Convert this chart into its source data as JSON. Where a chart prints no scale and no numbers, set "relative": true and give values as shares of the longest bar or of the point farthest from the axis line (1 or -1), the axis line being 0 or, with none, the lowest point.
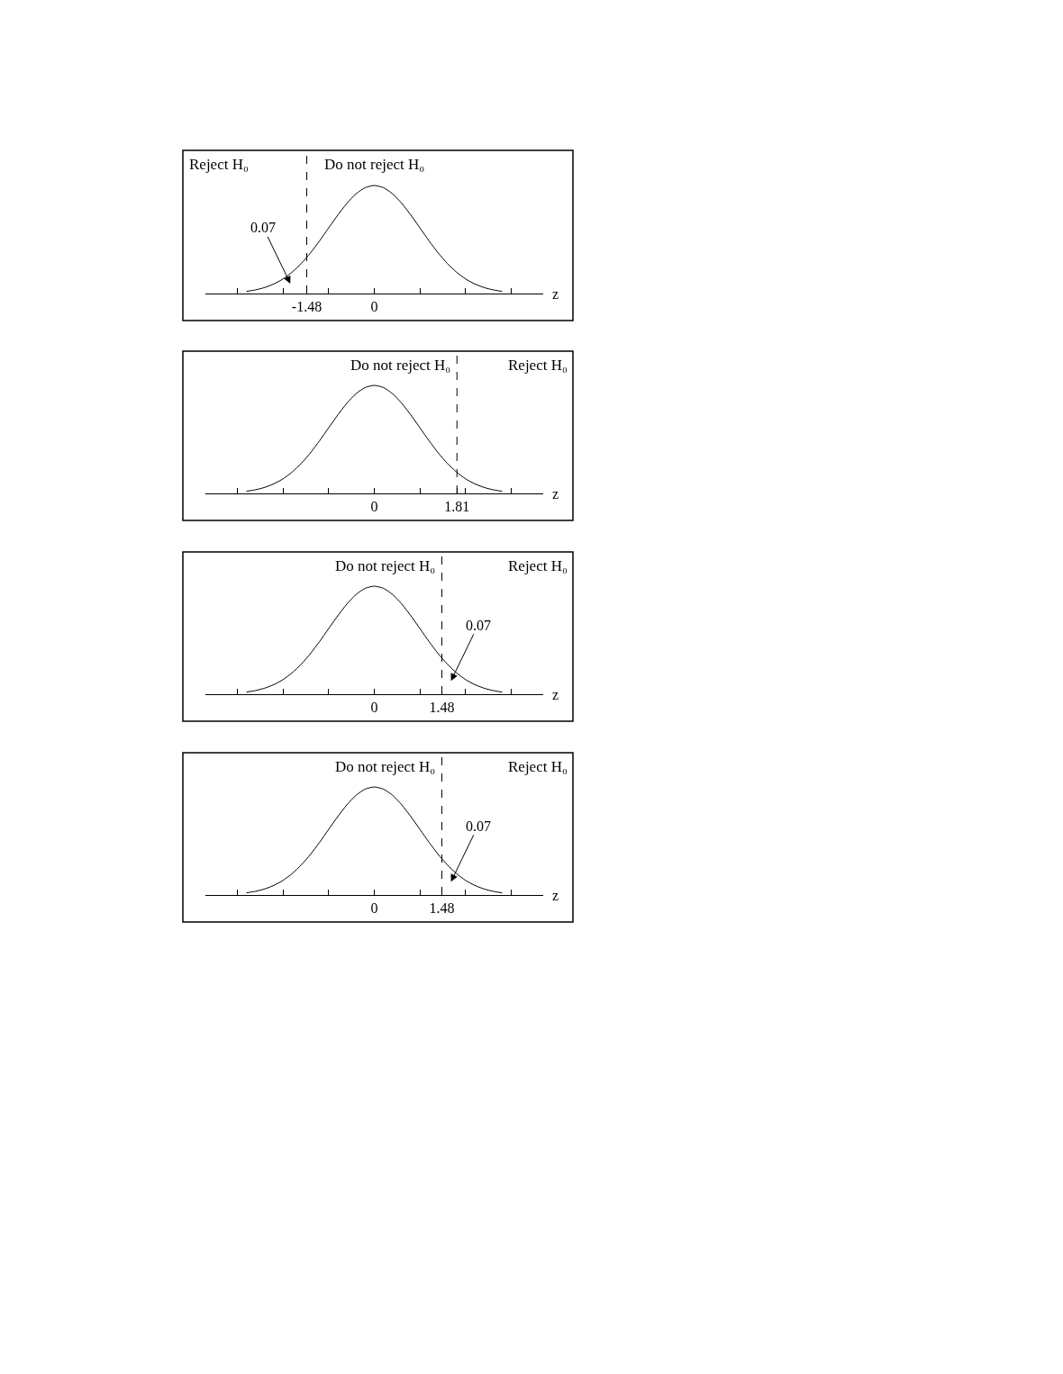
{
  "chart_data": [
    {
      "type": "line",
      "relative": true,
      "color": "#000000",
      "x": [
        -2.8,
        -2.6,
        -2.4,
        -2.2,
        -2.0,
        -1.8,
        -1.6,
        -1.4,
        -1.2,
        -1.0,
        -0.8,
        -0.6,
        -0.4,
        -0.2,
        0,
        0.2,
        0.4,
        0.6,
        0.8,
        1.0,
        1.2,
        1.4,
        1.6,
        1.8,
        2.0,
        2.2,
        2.4,
        2.6,
        2.8
      ],
      "values": [
        0.02,
        0.034,
        0.056,
        0.089,
        0.135,
        0.198,
        0.278,
        0.375,
        0.487,
        0.607,
        0.726,
        0.835,
        0.923,
        0.98,
        1,
        0.98,
        0.923,
        0.835,
        0.726,
        0.607,
        0.487,
        0.375,
        0.278,
        0.198,
        0.135,
        0.089,
        0.056,
        0.034,
        0.02
      ],
      "xlim": [
        -3.7,
        3.7
      ],
      "xticks": [
        {
          "value": -3,
          "label": null
        },
        {
          "value": -2,
          "label": null
        },
        {
          "value": -1.48,
          "label": "-1.48"
        },
        {
          "value": -1,
          "label": null
        },
        0,
        {
          "value": 1,
          "label": null
        },
        {
          "value": 2,
          "label": null
        },
        {
          "value": 3,
          "label": null
        }
      ],
      "xlabel": "z",
      "tick_labels": "x",
      "ref_lines": [
        {
          "axis": "x",
          "value": -1.48,
          "line_style": "dashed"
        }
      ],
      "annotations": [
        "Reject H₀",
        "Do not reject H₀",
        "0.07"
      ]
    },
    {
      "type": "line",
      "relative": true,
      "color": "#000000",
      "x": [
        -2.8,
        -2.6,
        -2.4,
        -2.2,
        -2.0,
        -1.8,
        -1.6,
        -1.4,
        -1.2,
        -1.0,
        -0.8,
        -0.6,
        -0.4,
        -0.2,
        0,
        0.2,
        0.4,
        0.6,
        0.8,
        1.0,
        1.2,
        1.4,
        1.6,
        1.8,
        2.0,
        2.2,
        2.4,
        2.6,
        2.8
      ],
      "values": [
        0.02,
        0.034,
        0.056,
        0.089,
        0.135,
        0.198,
        0.278,
        0.375,
        0.487,
        0.607,
        0.726,
        0.835,
        0.923,
        0.98,
        1,
        0.98,
        0.923,
        0.835,
        0.726,
        0.607,
        0.487,
        0.375,
        0.278,
        0.198,
        0.135,
        0.089,
        0.056,
        0.034,
        0.02
      ],
      "xlim": [
        -3.7,
        3.7
      ],
      "xticks": [
        {
          "value": -3,
          "label": null
        },
        {
          "value": -2,
          "label": null
        },
        {
          "value": -1,
          "label": null
        },
        0,
        {
          "value": 1,
          "label": null
        },
        {
          "value": 1.81,
          "label": "1.81"
        },
        {
          "value": 2,
          "label": null
        },
        {
          "value": 3,
          "label": null
        }
      ],
      "xlabel": "z",
      "tick_labels": "x",
      "ref_lines": [
        {
          "axis": "x",
          "value": 1.81,
          "line_style": "dashed"
        }
      ],
      "annotations": [
        "Do not reject H₀",
        "Reject H₀"
      ]
    },
    {
      "type": "line",
      "relative": true,
      "color": "#000000",
      "x": [
        -2.8,
        -2.6,
        -2.4,
        -2.2,
        -2.0,
        -1.8,
        -1.6,
        -1.4,
        -1.2,
        -1.0,
        -0.8,
        -0.6,
        -0.4,
        -0.2,
        0,
        0.2,
        0.4,
        0.6,
        0.8,
        1.0,
        1.2,
        1.4,
        1.6,
        1.8,
        2.0,
        2.2,
        2.4,
        2.6,
        2.8
      ],
      "values": [
        0.02,
        0.034,
        0.056,
        0.089,
        0.135,
        0.198,
        0.278,
        0.375,
        0.487,
        0.607,
        0.726,
        0.835,
        0.923,
        0.98,
        1,
        0.98,
        0.923,
        0.835,
        0.726,
        0.607,
        0.487,
        0.375,
        0.278,
        0.198,
        0.135,
        0.089,
        0.056,
        0.034,
        0.02
      ],
      "xlim": [
        -3.7,
        3.7
      ],
      "xticks": [
        {
          "value": -3,
          "label": null
        },
        {
          "value": -2,
          "label": null
        },
        {
          "value": -1,
          "label": null
        },
        0,
        {
          "value": 1,
          "label": null
        },
        {
          "value": 1.48,
          "label": "1.48"
        },
        {
          "value": 2,
          "label": null
        },
        {
          "value": 3,
          "label": null
        }
      ],
      "xlabel": "z",
      "tick_labels": "x",
      "ref_lines": [
        {
          "axis": "x",
          "value": 1.48,
          "line_style": "dashed"
        }
      ],
      "annotations": [
        "Do not reject H₀",
        "Reject H₀",
        "0.07"
      ]
    },
    {
      "type": "line",
      "relative": true,
      "color": "#000000",
      "x": [
        -2.8,
        -2.6,
        -2.4,
        -2.2,
        -2.0,
        -1.8,
        -1.6,
        -1.4,
        -1.2,
        -1.0,
        -0.8,
        -0.6,
        -0.4,
        -0.2,
        0,
        0.2,
        0.4,
        0.6,
        0.8,
        1.0,
        1.2,
        1.4,
        1.6,
        1.8,
        2.0,
        2.2,
        2.4,
        2.6,
        2.8
      ],
      "values": [
        0.02,
        0.034,
        0.056,
        0.089,
        0.135,
        0.198,
        0.278,
        0.375,
        0.487,
        0.607,
        0.726,
        0.835,
        0.923,
        0.98,
        1,
        0.98,
        0.923,
        0.835,
        0.726,
        0.607,
        0.487,
        0.375,
        0.278,
        0.198,
        0.135,
        0.089,
        0.056,
        0.034,
        0.02
      ],
      "xlim": [
        -3.7,
        3.7
      ],
      "xticks": [
        {
          "value": -3,
          "label": null
        },
        {
          "value": -2,
          "label": null
        },
        {
          "value": -1,
          "label": null
        },
        0,
        {
          "value": 1,
          "label": null
        },
        {
          "value": 1.48,
          "label": "1.48"
        },
        {
          "value": 2,
          "label": null
        },
        {
          "value": 3,
          "label": null
        }
      ],
      "xlabel": "z",
      "tick_labels": "x",
      "ref_lines": [
        {
          "axis": "x",
          "value": 1.48,
          "line_style": "dashed"
        }
      ],
      "annotations": [
        "Do not reject H₀",
        "Reject H₀",
        "0.07"
      ]
    }
  ]
}
